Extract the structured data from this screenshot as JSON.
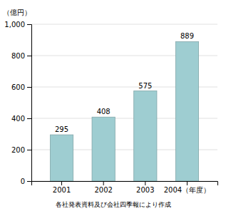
{
  "chart_data": {
    "type": "bar",
    "y_label": "（億円）",
    "footnote": "各社発表資料及び会社四季報により作成",
    "categories": [
      "2001",
      "2002",
      "2003",
      "2004（年度）"
    ],
    "values": [
      295,
      408,
      575,
      889
    ],
    "color": "#9ecdd1",
    "ylim": [
      0,
      1000
    ],
    "yticks": [
      0,
      200,
      400,
      600,
      800,
      {
        "value": 1000,
        "label": "1,000"
      }
    ],
    "grid": true,
    "data_labels": true
  }
}
